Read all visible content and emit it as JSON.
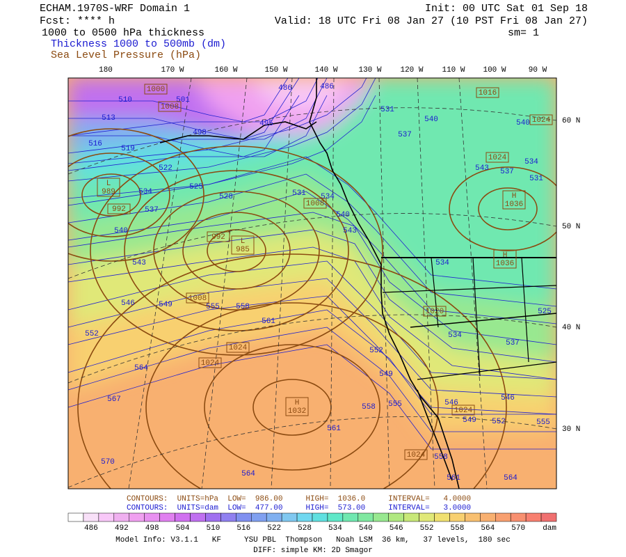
{
  "header": {
    "left": [
      "ECHAM.1970S-WRF Domain 1",
      "Fcst: **** h",
      "1000 to 0500 hPa thickness",
      "Thickness 1000 to 500mb (dm)",
      "Sea Level Pressure (hPa)"
    ],
    "right": [
      "Init: 00 UTC Sat 01 Sep 18",
      "Valid: 18 UTC Fri 08 Jan 27 (10 PST Fri 08 Jan 27)",
      "sm= 1"
    ]
  },
  "lon_labels": [
    "180",
    "170 W",
    "160 W",
    "150 W",
    "140 W",
    "130 W",
    "120 W",
    "110 W",
    "100 W",
    "90 W"
  ],
  "lat_labels": [
    "60 N",
    "50 N",
    "40 N",
    "30 N"
  ],
  "thickness_labels": [
    "510",
    "513",
    "516",
    "519",
    "522",
    "501",
    "498",
    "495",
    "486",
    "486",
    "525",
    "528",
    "531",
    "534",
    "537",
    "540",
    "543",
    "546",
    "549",
    "552",
    "555",
    "558",
    "561",
    "564",
    "567",
    "570",
    "564",
    "561",
    "558",
    "555",
    "552",
    "549",
    "531",
    "537",
    "540",
    "540",
    "543",
    "537",
    "534",
    "531",
    "534",
    "540",
    "543",
    "534",
    "525",
    "537",
    "534",
    "546",
    "549",
    "552",
    "555",
    "546",
    "558",
    "561",
    "564"
  ],
  "pressure_boxes": [
    {
      "value": "1000"
    },
    {
      "value": "1008"
    },
    {
      "marker": "L",
      "value": "989"
    },
    {
      "value": "992"
    },
    {
      "value": "992"
    },
    {
      "marker": "L",
      "value": "985"
    },
    {
      "value": "1008"
    },
    {
      "value": "1008"
    },
    {
      "value": "1024"
    },
    {
      "value": "1024"
    },
    {
      "marker": "H",
      "value": "1032"
    },
    {
      "value": "1024"
    },
    {
      "value": "1024"
    },
    {
      "marker": "H",
      "value": "1036"
    },
    {
      "marker": "H",
      "value": "1036"
    },
    {
      "value": "1024"
    },
    {
      "value": "1016"
    },
    {
      "value": "1024"
    },
    {
      "value": "1020"
    }
  ],
  "contours": [
    "CONTOURS:  UNITS=hPa  LOW=  986.00     HIGH=  1036.0     INTERVAL=   4.0000",
    "CONTOURS:  UNITS=dam  LOW=  477.00     HIGH=  573.00     INTERVAL=   3.0000"
  ],
  "colorbar": {
    "colors": [
      "#ffffff",
      "#f8e0f8",
      "#f8c8f8",
      "#f0b0f0",
      "#f0a0f0",
      "#e890f0",
      "#e080f0",
      "#d070f0",
      "#c070f0",
      "#a070f0",
      "#9080f0",
      "#8090f0",
      "#80a0f0",
      "#80b0f0",
      "#80c8f0",
      "#70d8f0",
      "#60e0e0",
      "#60e8c8",
      "#70e8b0",
      "#80e8a0",
      "#98e890",
      "#b0e880",
      "#c8e878",
      "#e0e878",
      "#f0e070",
      "#f8d070",
      "#f8c070",
      "#f8b070",
      "#f8a070",
      "#f89070",
      "#f88070",
      "#f07070"
    ],
    "labels": [
      "486",
      "492",
      "498",
      "504",
      "510",
      "516",
      "522",
      "528",
      "534",
      "540",
      "546",
      "552",
      "558",
      "564",
      "570"
    ],
    "unit": "dam"
  },
  "footer": [
    "Model Info: V3.1.1   KF     YSU PBL  Thompson   Noah LSM  36 km,   37 levels,  180 sec",
    "DIFF: simple KM: 2D Smagor"
  ]
}
